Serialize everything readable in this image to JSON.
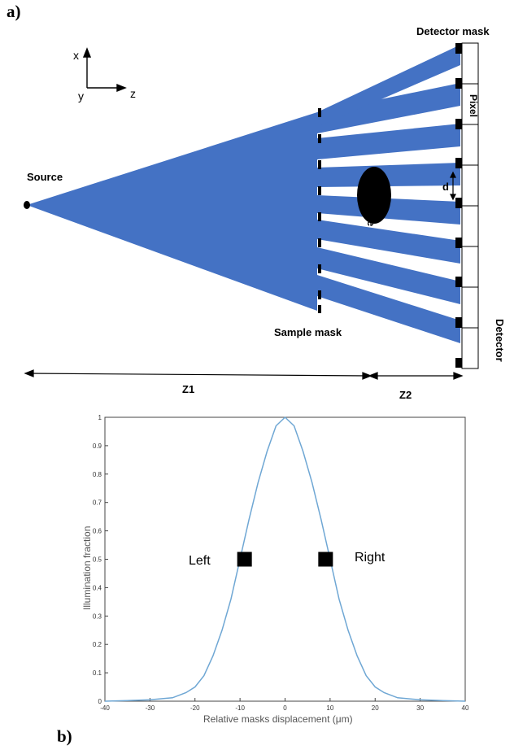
{
  "panel_a": {
    "label": "a)",
    "axes": {
      "x": "x",
      "y": "y",
      "z": "z"
    },
    "source_label": "Source",
    "detector_mask_label": "Detector mask",
    "sample_mask_label": "Sample mask",
    "sample_label": "Sample",
    "pixel_label": "Pixel",
    "d_label": "d",
    "detector_label": "Detector",
    "z1_label": "Z1",
    "z2_label": "Z2",
    "beam_color": "#4472c4"
  },
  "panel_b": {
    "label": "b)",
    "left_marker": "Left",
    "right_marker": "Right"
  },
  "chart_data": {
    "type": "line",
    "xlabel": "Relative masks displacement (μm)",
    "ylabel": "Illumination fraction",
    "xlim": [
      -40,
      40
    ],
    "ylim": [
      0,
      1
    ],
    "xticks": [
      "-40",
      "-30",
      "-20",
      "-10",
      "0",
      "10",
      "20",
      "30",
      "40"
    ],
    "yticks": [
      "0",
      "0.1",
      "0.2",
      "0.3",
      "0.4",
      "0.5",
      "0.6",
      "0.7",
      "0.8",
      "0.9",
      "1"
    ],
    "line_color": "#6fa7d4",
    "series": [
      {
        "x": [
          -40,
          -35,
          -30,
          -25,
          -22,
          -20,
          -18,
          -16,
          -14,
          -12,
          -10,
          -8,
          -6,
          -4,
          -2,
          0,
          2,
          4,
          6,
          8,
          10,
          12,
          14,
          16,
          18,
          20,
          22,
          25,
          30,
          35,
          40
        ],
        "values": [
          0.0,
          0.002,
          0.005,
          0.012,
          0.03,
          0.05,
          0.09,
          0.16,
          0.25,
          0.36,
          0.5,
          0.64,
          0.77,
          0.88,
          0.97,
          1.0,
          0.97,
          0.88,
          0.77,
          0.64,
          0.5,
          0.36,
          0.25,
          0.16,
          0.09,
          0.05,
          0.03,
          0.012,
          0.005,
          0.002,
          0.0
        ]
      }
    ],
    "markers": [
      {
        "x": -9,
        "y": 0.5
      },
      {
        "x": 9,
        "y": 0.5
      }
    ]
  }
}
